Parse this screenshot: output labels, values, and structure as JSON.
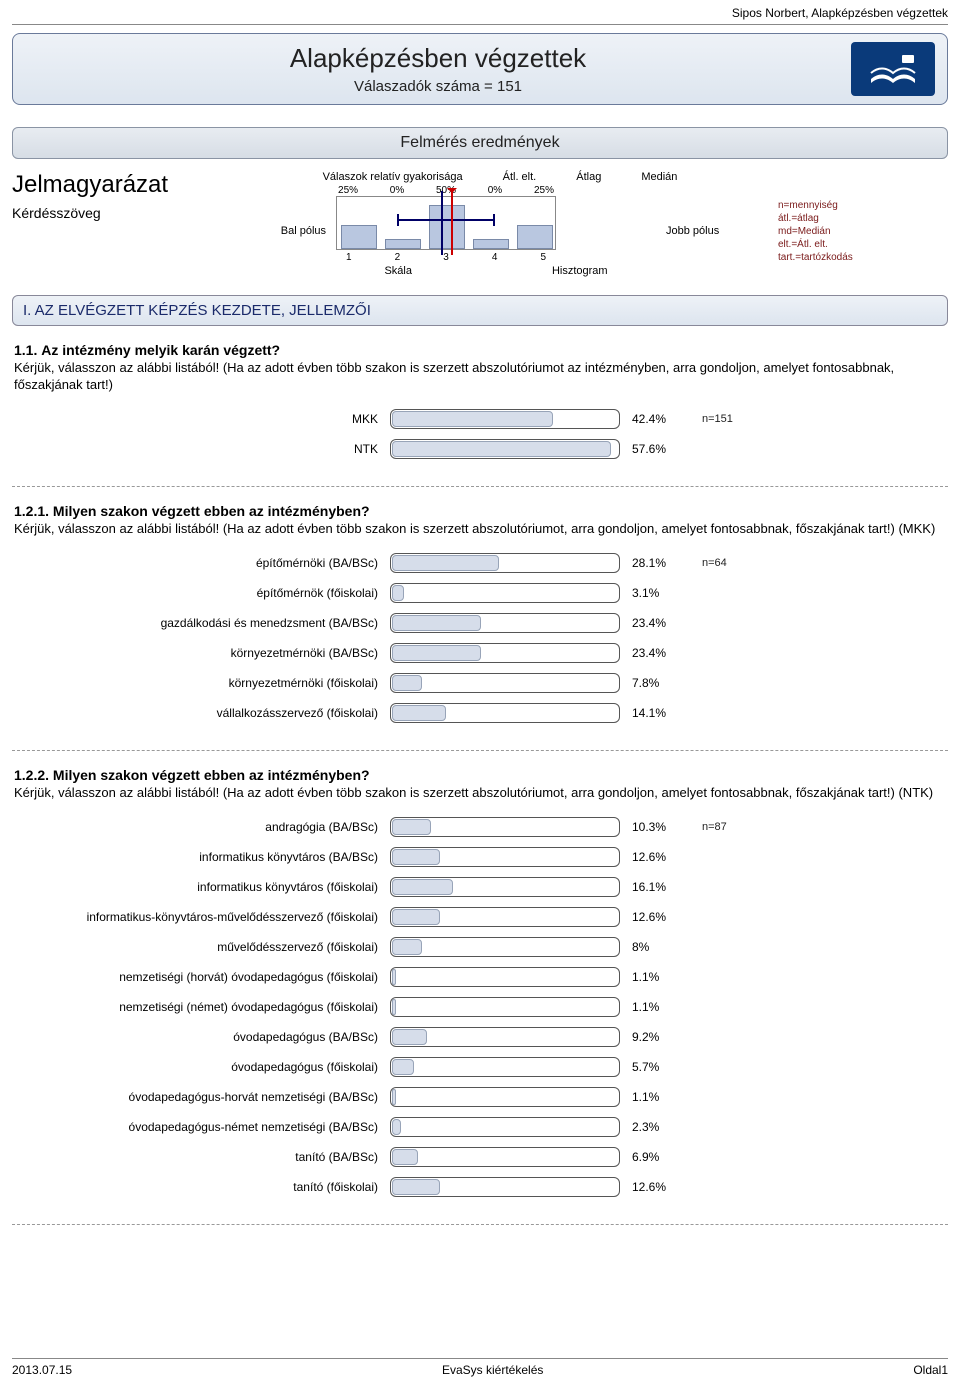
{
  "header": {
    "author_line": "Sipos Norbert, Alapképzésben végzettek",
    "title": "Alapképzésben végzettek",
    "subtitle": "Válaszadók száma = 151"
  },
  "results_banner": "Felmérés eredmények",
  "legend": {
    "title": "Jelmagyarázat",
    "question_label": "Kérdésszöveg",
    "rel_freq": "Válaszok relatív gyakorisága",
    "std_dev": "Átl. elt.",
    "mean": "Átlag",
    "median": "Medián",
    "left_pole": "Bal pólus",
    "right_pole": "Jobb pólus",
    "scale": "Skála",
    "histogram": "Hisztogram",
    "pct": [
      "25%",
      "0%",
      "50%",
      "0%",
      "25%"
    ],
    "axis": [
      "1",
      "2",
      "3",
      "4",
      "5"
    ],
    "key_lines": {
      "n": "n=mennyiség",
      "avg": "átl.=átlag",
      "md": "md=Medián",
      "elt": "elt.=Átl. elt.",
      "tart": "tart.=tartózkodás"
    }
  },
  "section1": {
    "heading": "I. AZ ELVÉGZETT KÉPZÉS KEZDETE, JELLEMZŐI"
  },
  "q11": {
    "num": "1.1.",
    "title": "Az intézmény melyik karán végzett?",
    "desc": "Kérjük, válasszon az alábbi listából! (Ha az adott évben több szakon is szerzett abszolutóriumot az intézményben, arra gondoljon, amelyet fontosabbnak, főszakjának tart!)",
    "n": "n=151",
    "rows": [
      {
        "label": "MKK",
        "pct": 42.4,
        "pct_text": "42.4%"
      },
      {
        "label": "NTK",
        "pct": 57.6,
        "pct_text": "57.6%"
      }
    ]
  },
  "q121": {
    "num": "1.2.1.",
    "title": "Milyen szakon végzett ebben az intézményben?",
    "desc": "Kérjük, válasszon az alábbi listából! (Ha az adott évben több szakon is szerzett abszolutóriumot, arra gondoljon, amelyet fontosabbnak, főszakjának tart!) (MKK)",
    "n": "n=64",
    "rows": [
      {
        "label": "építőmérnöki (BA/BSc)",
        "pct": 28.1,
        "pct_text": "28.1%"
      },
      {
        "label": "építőmérnök (főiskolai)",
        "pct": 3.1,
        "pct_text": "3.1%"
      },
      {
        "label": "gazdálkodási és menedzsment (BA/BSc)",
        "pct": 23.4,
        "pct_text": "23.4%"
      },
      {
        "label": "környezetmérnöki (BA/BSc)",
        "pct": 23.4,
        "pct_text": "23.4%"
      },
      {
        "label": "környezetmérnöki (főiskolai)",
        "pct": 7.8,
        "pct_text": "7.8%"
      },
      {
        "label": "vállalkozásszervező (főiskolai)",
        "pct": 14.1,
        "pct_text": "14.1%"
      }
    ]
  },
  "q122": {
    "num": "1.2.2.",
    "title": "Milyen szakon végzett ebben az intézményben?",
    "desc": "Kérjük, válasszon az alábbi listából! (Ha az adott évben több szakon is szerzett abszolutóriumot, arra gondoljon, amelyet fontosabbnak, főszakjának tart!) (NTK)",
    "n": "n=87",
    "rows": [
      {
        "label": "andragógia (BA/BSc)",
        "pct": 10.3,
        "pct_text": "10.3%"
      },
      {
        "label": "informatikus könyvtáros (BA/BSc)",
        "pct": 12.6,
        "pct_text": "12.6%"
      },
      {
        "label": "informatikus könyvtáros (főiskolai)",
        "pct": 16.1,
        "pct_text": "16.1%"
      },
      {
        "label": "informatikus-könyvtáros-művelődésszervező (főiskolai)",
        "pct": 12.6,
        "pct_text": "12.6%"
      },
      {
        "label": "művelődésszervező (főiskolai)",
        "pct": 8.0,
        "pct_text": "8%"
      },
      {
        "label": "nemzetiségi (horvát) óvodapedagógus (főiskolai)",
        "pct": 1.1,
        "pct_text": "1.1%"
      },
      {
        "label": "nemzetiségi (német) óvodapedagógus (főiskolai)",
        "pct": 1.1,
        "pct_text": "1.1%"
      },
      {
        "label": "óvodapedagógus (BA/BSc)",
        "pct": 9.2,
        "pct_text": "9.2%"
      },
      {
        "label": "óvodapedagógus (főiskolai)",
        "pct": 5.7,
        "pct_text": "5.7%"
      },
      {
        "label": "óvodapedagógus-horvát nemzetiségi (BA/BSc)",
        "pct": 1.1,
        "pct_text": "1.1%"
      },
      {
        "label": "óvodapedagógus-német nemzetiségi (BA/BSc)",
        "pct": 2.3,
        "pct_text": "2.3%"
      },
      {
        "label": "tanító (BA/BSc)",
        "pct": 6.9,
        "pct_text": "6.9%"
      },
      {
        "label": "tanító (főiskolai)",
        "pct": 12.6,
        "pct_text": "12.6%"
      }
    ]
  },
  "footer": {
    "date": "2013.07.15",
    "center": "EvaSys kiértékelés",
    "page": "Oldal1"
  },
  "style": {
    "bar_fill": "#d6ddea",
    "bar_border": "#98a4b8",
    "track_border": "#555555",
    "bar_max_scale": 60
  }
}
